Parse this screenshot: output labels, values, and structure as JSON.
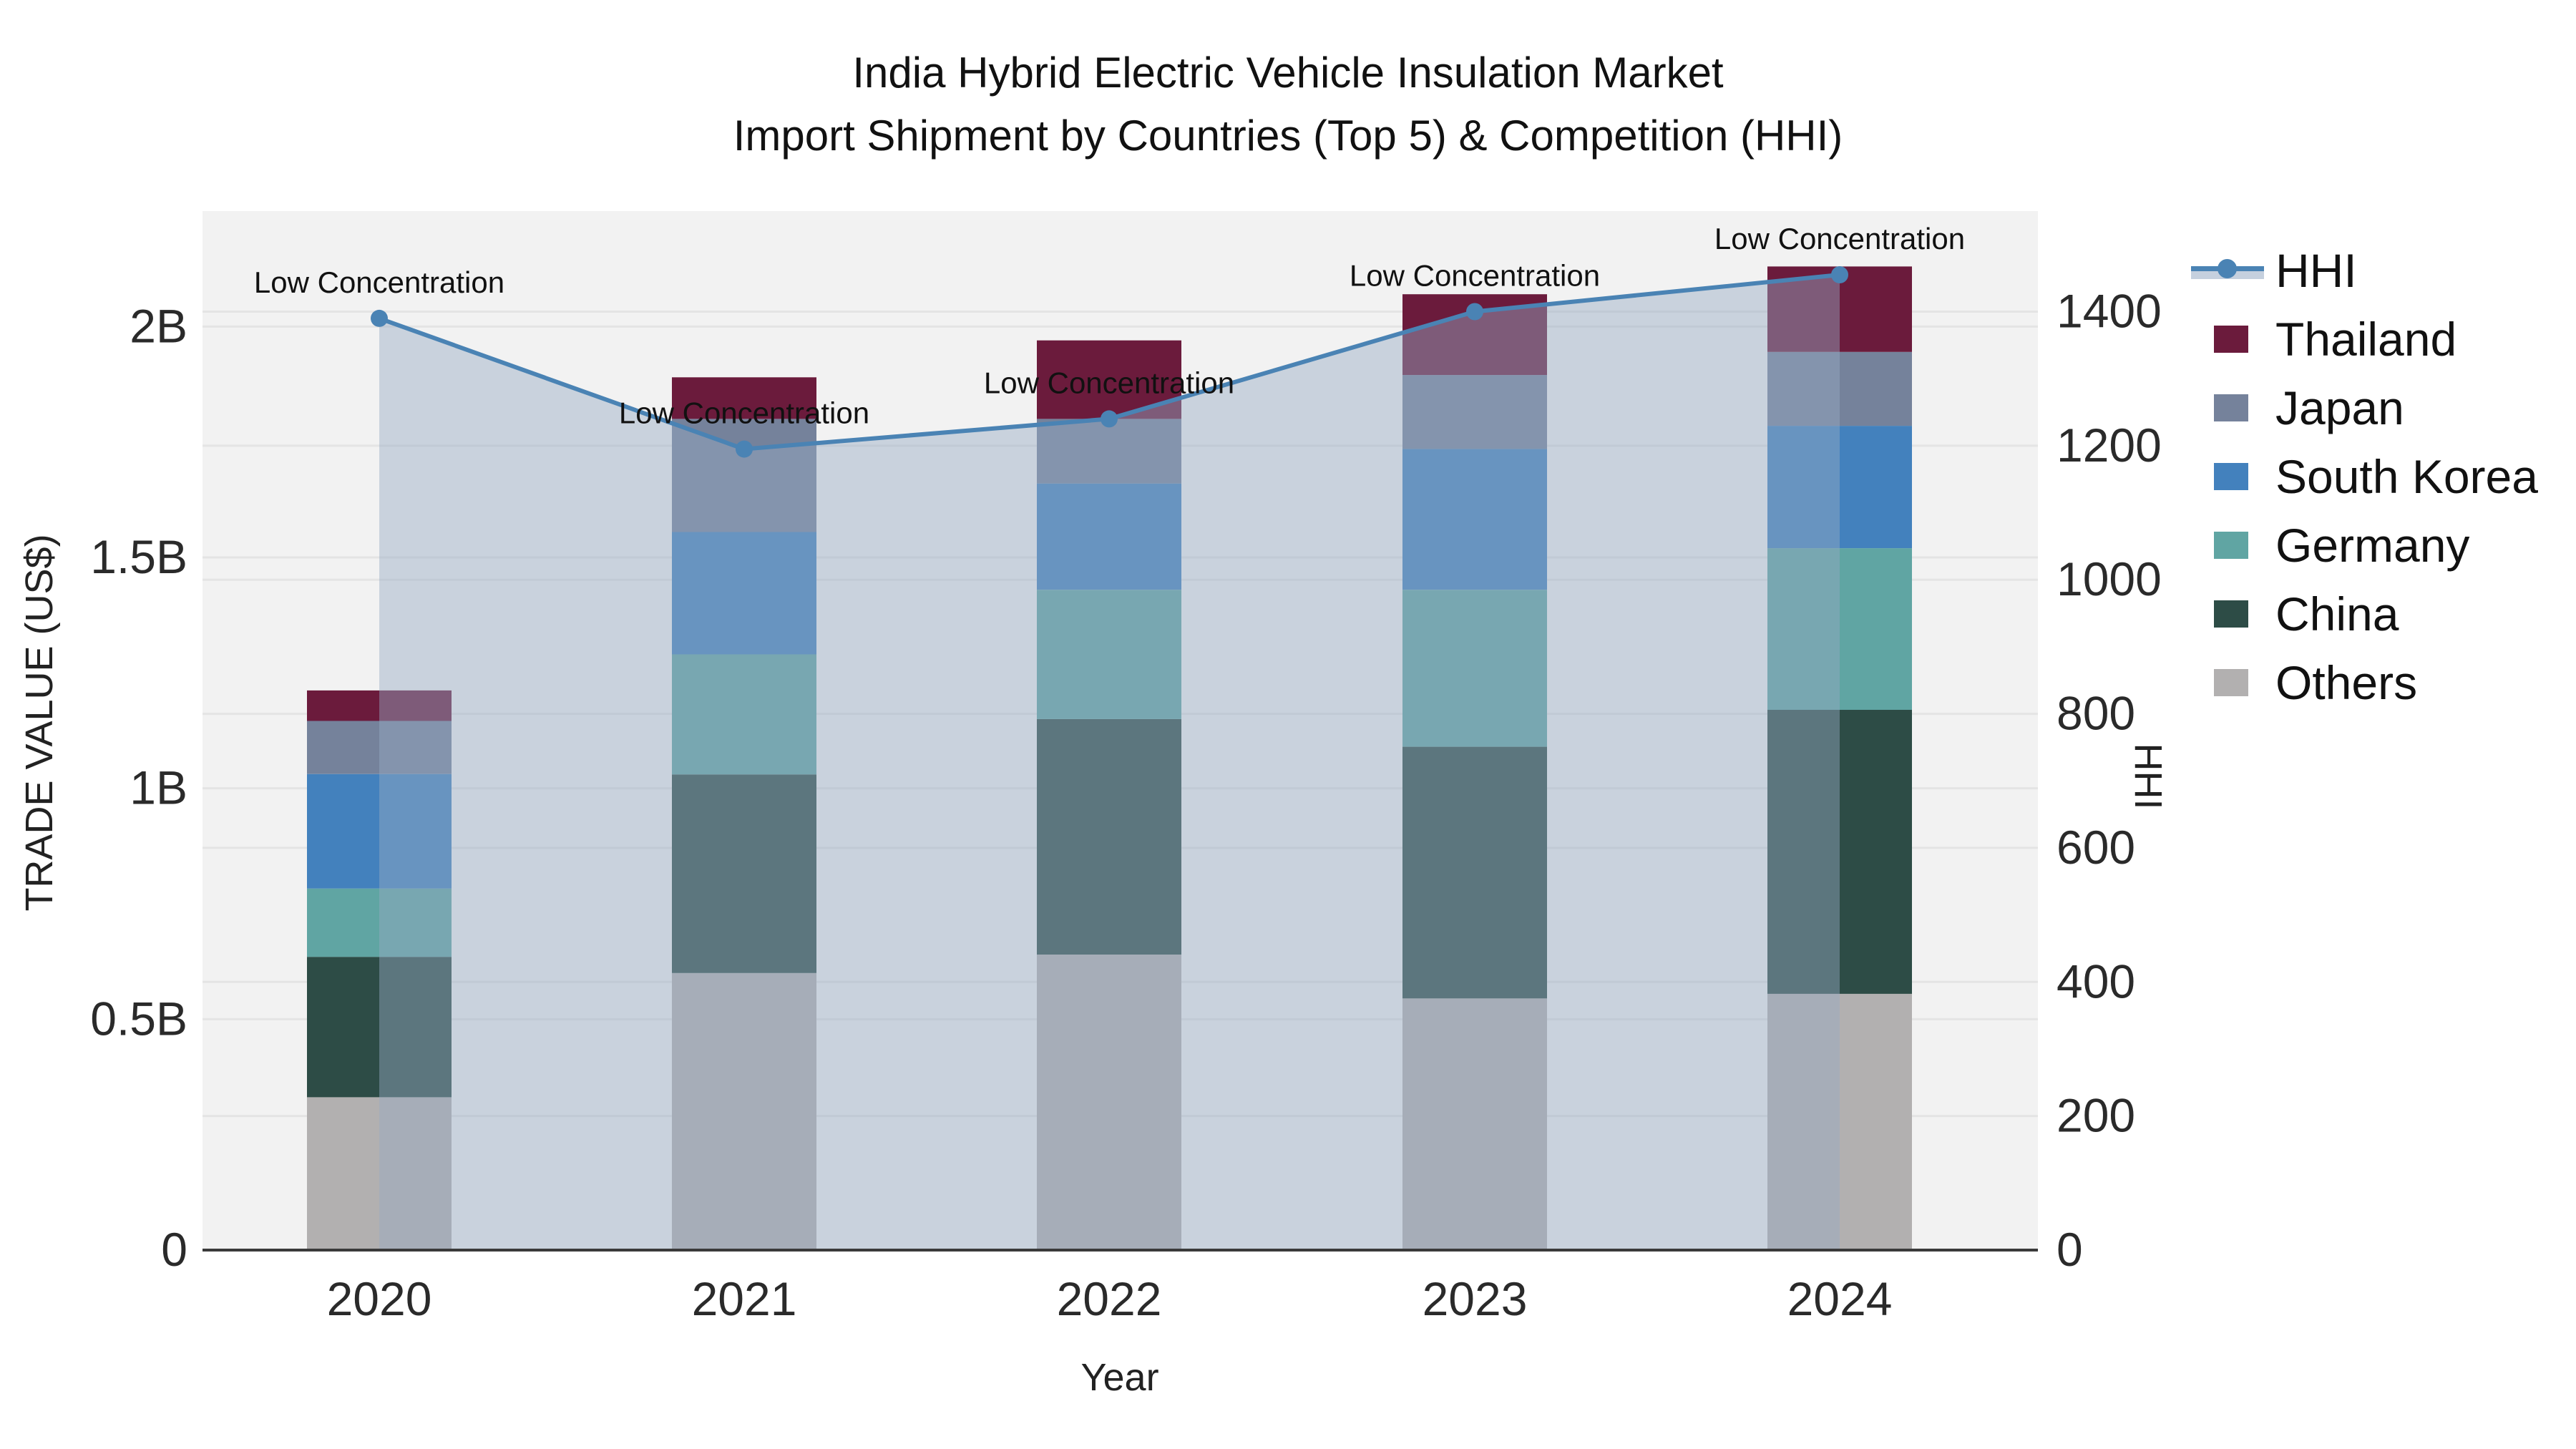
{
  "title": {
    "line1": "India Hybrid Electric Vehicle Insulation Market",
    "line2": "Import Shipment by Countries (Top 5) & Competition (HHI)"
  },
  "chart_data": {
    "type": "bar",
    "subtype": "stacked-bar-with-line",
    "categories": [
      "2020",
      "2021",
      "2022",
      "2023",
      "2024"
    ],
    "series": [
      {
        "name": "Others",
        "color": "#B2B0B0",
        "values_billion": [
          0.331,
          0.6,
          0.64,
          0.545,
          0.555
        ]
      },
      {
        "name": "China",
        "color": "#2D4C46",
        "values_billion": [
          0.304,
          0.43,
          0.51,
          0.545,
          0.615
        ]
      },
      {
        "name": "Germany",
        "color": "#60A5A3",
        "values_billion": [
          0.148,
          0.26,
          0.28,
          0.34,
          0.35
        ]
      },
      {
        "name": "South Korea",
        "color": "#4381BD",
        "values_billion": [
          0.248,
          0.265,
          0.23,
          0.305,
          0.265
        ]
      },
      {
        "name": "Japan",
        "color": "#75829B",
        "values_billion": [
          0.115,
          0.245,
          0.14,
          0.16,
          0.16
        ]
      },
      {
        "name": "Thailand",
        "color": "#6B1B3C",
        "values_billion": [
          0.066,
          0.09,
          0.17,
          0.175,
          0.185
        ]
      }
    ],
    "bar_totals_billion": [
      1.212,
      1.89,
      1.97,
      2.07,
      2.13
    ],
    "line_series": {
      "name": "HHI",
      "color": "#4A83B4",
      "fill_color": "rgba(150,170,195,0.45)",
      "values": [
        1390,
        1195,
        1240,
        1400,
        1455
      ]
    },
    "annotations": [
      "Low Concentration",
      "Low Concentration",
      "Low Concentration",
      "Low Concentration",
      "Low Concentration"
    ],
    "xlabel": "Year",
    "ylabel_left": "TRADE VALUE (US$)",
    "ylabel_right": "HHI",
    "ylim_left_billion": [
      0,
      2.25
    ],
    "ylim_right": [
      0,
      1550
    ],
    "left_ticks": [
      {
        "value": 0,
        "label": "0"
      },
      {
        "value": 0.5,
        "label": "0.5B"
      },
      {
        "value": 1,
        "label": "1B"
      },
      {
        "value": 1.5,
        "label": "1.5B"
      },
      {
        "value": 2,
        "label": "2B"
      }
    ],
    "right_ticks": [
      {
        "value": 0,
        "label": "0"
      },
      {
        "value": 200,
        "label": "200"
      },
      {
        "value": 400,
        "label": "400"
      },
      {
        "value": 600,
        "label": "600"
      },
      {
        "value": 800,
        "label": "800"
      },
      {
        "value": 1000,
        "label": "1000"
      },
      {
        "value": 1200,
        "label": "1200"
      },
      {
        "value": 1400,
        "label": "1400"
      }
    ],
    "grid": true,
    "legend_position": "right"
  },
  "legend": {
    "items": [
      {
        "label": "HHI",
        "type": "line",
        "color": "#4A83B4"
      },
      {
        "label": "Thailand",
        "type": "box",
        "color": "#6B1B3C"
      },
      {
        "label": "Japan",
        "type": "box",
        "color": "#75829B"
      },
      {
        "label": "South Korea",
        "type": "box",
        "color": "#4381BD"
      },
      {
        "label": "Germany",
        "type": "box",
        "color": "#60A5A3"
      },
      {
        "label": "China",
        "type": "box",
        "color": "#2D4C46"
      },
      {
        "label": "Others",
        "type": "box",
        "color": "#B2B0B0"
      }
    ]
  },
  "colors": {
    "plot_background": "#f2f2f2",
    "grid_line": "#e4e4e4",
    "axis_line": "#3a3a3a",
    "tick_text": "#2a2a2a",
    "annotation_text": "#111111"
  }
}
